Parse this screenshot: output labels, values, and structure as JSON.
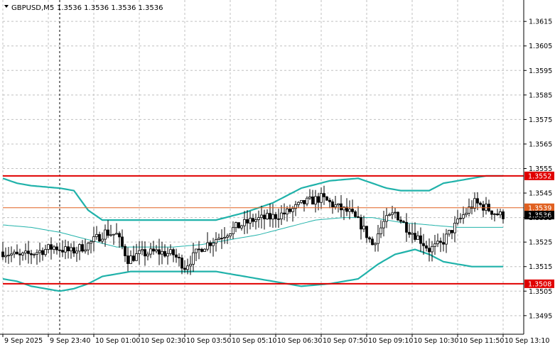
{
  "chart_data": {
    "type": "candlestick",
    "symbol_label": "GBPUSD,M5",
    "ohlc_label": "1.3536 1.3536 1.3536 1.3536",
    "ylim": [
      1.3488,
      1.3622
    ],
    "grid": true,
    "y_ticks": [
      {
        "value": 1.3615,
        "label": "1.3615"
      },
      {
        "value": 1.3605,
        "label": "1.3605"
      },
      {
        "value": 1.3595,
        "label": "1.3595"
      },
      {
        "value": 1.3585,
        "label": "1.3585"
      },
      {
        "value": 1.3575,
        "label": "1.3575"
      },
      {
        "value": 1.3565,
        "label": "1.3565"
      },
      {
        "value": 1.3555,
        "label": "1.3555"
      },
      {
        "value": 1.3545,
        "label": "1.3545"
      },
      {
        "value": 1.3535,
        "label": "1.3535"
      },
      {
        "value": 1.3525,
        "label": "1.3525"
      },
      {
        "value": 1.3515,
        "label": "1.3515"
      },
      {
        "value": 1.3505,
        "label": "1.3505"
      },
      {
        "value": 1.3495,
        "label": "1.3495"
      }
    ],
    "x_ticks": [
      {
        "bar": 0,
        "label": "9 Sep 2025"
      },
      {
        "bar": 16,
        "label": "9 Sep 23:40"
      },
      {
        "bar": 32,
        "label": "10 Sep 01:00"
      },
      {
        "bar": 48,
        "label": "10 Sep 02:30"
      },
      {
        "bar": 64,
        "label": "10 Sep 03:50"
      },
      {
        "bar": 80,
        "label": "10 Sep 05:10"
      },
      {
        "bar": 96,
        "label": "10 Sep 06:30"
      },
      {
        "bar": 112,
        "label": "10 Sep 07:50"
      },
      {
        "bar": 128,
        "label": "10 Sep 09:10"
      },
      {
        "bar": 144,
        "label": "10 Sep 10:30"
      },
      {
        "bar": 160,
        "label": "10 Sep 11:50"
      },
      {
        "bar": 176,
        "label": "10 Sep 13:10"
      }
    ],
    "session_separator_bar": 20,
    "levels": [
      {
        "value": 1.3552,
        "label": "1.3552",
        "color": "#e00000"
      },
      {
        "value": 1.3508,
        "label": "1.3508",
        "color": "#e00000"
      },
      {
        "value": 1.3539,
        "label": "1.3539",
        "color": "#e06020"
      }
    ],
    "current_price": {
      "value": 1.3536,
      "label": "1.3536"
    },
    "colors": {
      "bands": "#20b2aa",
      "candles": "#000000",
      "grid": "#c0c0c0"
    },
    "band_anchors": {
      "upper": [
        [
          0,
          1.3551
        ],
        [
          5,
          1.3549
        ],
        [
          10,
          1.3548
        ],
        [
          20,
          1.3547
        ],
        [
          25,
          1.3546
        ],
        [
          30,
          1.3538
        ],
        [
          35,
          1.3534
        ],
        [
          45,
          1.3534
        ],
        [
          60,
          1.3534
        ],
        [
          75,
          1.3534
        ],
        [
          85,
          1.3537
        ],
        [
          95,
          1.3541
        ],
        [
          105,
          1.3547
        ],
        [
          115,
          1.355
        ],
        [
          125,
          1.3551
        ],
        [
          135,
          1.3547
        ],
        [
          140,
          1.3546
        ],
        [
          150,
          1.3546
        ],
        [
          155,
          1.3549
        ],
        [
          165,
          1.3551
        ],
        [
          170,
          1.3552
        ],
        [
          175,
          1.3552
        ]
      ],
      "middle": [
        [
          0,
          1.3532
        ],
        [
          10,
          1.3531
        ],
        [
          20,
          1.3529
        ],
        [
          30,
          1.3526
        ],
        [
          40,
          1.3523
        ],
        [
          50,
          1.3523
        ],
        [
          60,
          1.3523
        ],
        [
          70,
          1.3524
        ],
        [
          80,
          1.3526
        ],
        [
          90,
          1.3528
        ],
        [
          100,
          1.3531
        ],
        [
          110,
          1.3534
        ],
        [
          120,
          1.3535
        ],
        [
          130,
          1.3535
        ],
        [
          140,
          1.3533
        ],
        [
          150,
          1.3532
        ],
        [
          160,
          1.3531
        ],
        [
          168,
          1.3531
        ],
        [
          176,
          1.3531
        ]
      ],
      "lower": [
        [
          0,
          1.351
        ],
        [
          5,
          1.3509
        ],
        [
          10,
          1.3507
        ],
        [
          20,
          1.3505
        ],
        [
          25,
          1.3506
        ],
        [
          30,
          1.3508
        ],
        [
          35,
          1.3511
        ],
        [
          45,
          1.3513
        ],
        [
          60,
          1.3513
        ],
        [
          75,
          1.3513
        ],
        [
          85,
          1.3511
        ],
        [
          95,
          1.3509
        ],
        [
          105,
          1.3507
        ],
        [
          115,
          1.3508
        ],
        [
          125,
          1.351
        ],
        [
          132,
          1.3516
        ],
        [
          138,
          1.352
        ],
        [
          145,
          1.3522
        ],
        [
          150,
          1.352
        ],
        [
          155,
          1.3517
        ],
        [
          165,
          1.3515
        ],
        [
          176,
          1.3515
        ]
      ]
    },
    "close_anchors": [
      [
        0,
        1.3521
      ],
      [
        6,
        1.3519
      ],
      [
        12,
        1.3521
      ],
      [
        18,
        1.3523
      ],
      [
        24,
        1.3521
      ],
      [
        30,
        1.3524
      ],
      [
        36,
        1.3529
      ],
      [
        40,
        1.3528
      ],
      [
        44,
        1.3518
      ],
      [
        48,
        1.352
      ],
      [
        54,
        1.3521
      ],
      [
        60,
        1.352
      ],
      [
        64,
        1.3515
      ],
      [
        70,
        1.3523
      ],
      [
        76,
        1.3527
      ],
      [
        82,
        1.3531
      ],
      [
        88,
        1.3534
      ],
      [
        94,
        1.3535
      ],
      [
        100,
        1.3537
      ],
      [
        106,
        1.3541
      ],
      [
        112,
        1.3543
      ],
      [
        118,
        1.3539
      ],
      [
        122,
        1.3537
      ],
      [
        126,
        1.3532
      ],
      [
        130,
        1.3524
      ],
      [
        134,
        1.3533
      ],
      [
        138,
        1.3537
      ],
      [
        142,
        1.3531
      ],
      [
        146,
        1.3527
      ],
      [
        150,
        1.3522
      ],
      [
        154,
        1.3524
      ],
      [
        158,
        1.353
      ],
      [
        162,
        1.3536
      ],
      [
        166,
        1.3541
      ],
      [
        170,
        1.3539
      ],
      [
        173,
        1.3537
      ],
      [
        175,
        1.3536
      ]
    ]
  }
}
